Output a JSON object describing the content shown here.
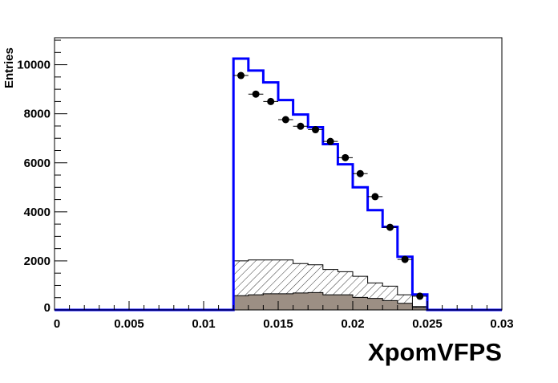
{
  "chart_data": {
    "type": "bar",
    "xlabel": "XpomVFPS",
    "ylabel": "Entries",
    "xlim": [
      0,
      0.03
    ],
    "ylim": [
      0,
      11100
    ],
    "grid": false,
    "x_ticks": [
      "0",
      "0.005",
      "0.01",
      "0.015",
      "0.02",
      "0.025",
      "0.03"
    ],
    "y_ticks": [
      "0",
      "2000",
      "4000",
      "6000",
      "8000",
      "10000"
    ],
    "bin_edges": [
      0.012,
      0.013,
      0.014,
      0.015,
      0.016,
      0.017,
      0.018,
      0.019,
      0.02,
      0.021,
      0.022,
      0.023,
      0.024,
      0.025
    ],
    "series": [
      {
        "style": "step-line",
        "color": "#0000ff",
        "values": [
          10250,
          9760,
          9280,
          8560,
          7970,
          7450,
          6760,
          5940,
          5000,
          4070,
          3390,
          2170,
          630
        ]
      },
      {
        "style": "hatched-fill",
        "color": "#000000",
        "values": [
          2000,
          2040,
          2040,
          2040,
          1890,
          1840,
          1650,
          1560,
          1370,
          1100,
          970,
          620,
          140
        ]
      },
      {
        "style": "solid-fill",
        "color": "#9c8f84",
        "values": [
          580,
          620,
          660,
          660,
          690,
          710,
          620,
          620,
          510,
          470,
          380,
          270,
          100
        ]
      },
      {
        "style": "points-with-errors",
        "color": "#000000",
        "values": [
          9560,
          8800,
          8500,
          7760,
          7490,
          7350,
          6870,
          6210,
          5560,
          4620,
          3370,
          2060,
          560
        ]
      }
    ]
  }
}
